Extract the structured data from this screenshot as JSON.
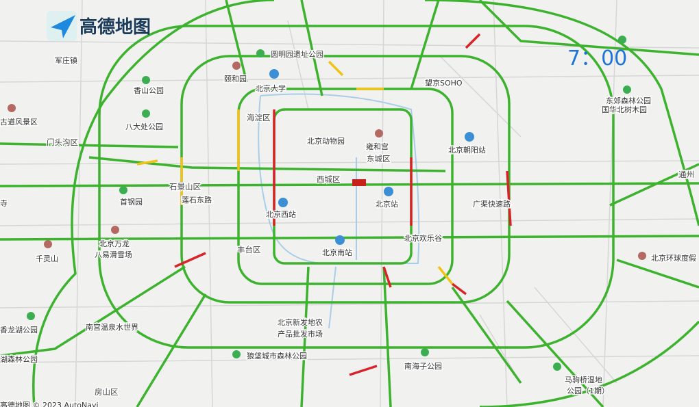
{
  "header": {
    "logo": "高德地图",
    "time": "7：00"
  },
  "labels": [
    "军庄镇",
    "颐和园",
    "圆明园遗址公园",
    "北京大学",
    "望京SOHO",
    "香山公园",
    "古道风景区",
    "海淀区",
    "八大处公园",
    "门头沟区",
    "北京动物园",
    "雍和宫",
    "北京朝阳站",
    "东城区",
    "西城区",
    "石景山区",
    "首钢园",
    "莲石东路",
    "北京站",
    "广渠快速路",
    "北京西站",
    "北京欢乐谷",
    "北京万龙",
    "八易滑雪场",
    "丰台区",
    "北京南站",
    "千灵山",
    "北京环球度假",
    "东郊森林公园",
    "国华北树木园",
    "通州",
    "南宫温泉水世界",
    "香龙湖公园",
    "北京新发地农",
    "产品批发市场",
    "狼垡城市森林公园",
    "湖森林公园",
    "南海子公园",
    "马驹桥湿地",
    "公园（1期）",
    "房山区",
    "寺"
  ],
  "footer": "高德地图 © 2023 AutoNavi"
}
